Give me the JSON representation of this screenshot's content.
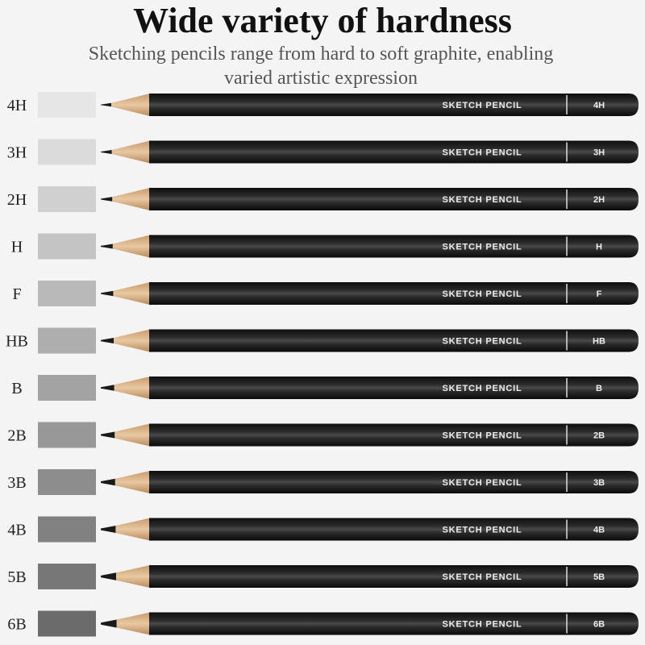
{
  "title": "Wide variety of hardness",
  "subtitle": [
    "Sketching pencils range from hard to soft graphite, enabling",
    "varied artistic expression"
  ],
  "rows": [
    {
      "label": "4H",
      "brand": "SKETCH PENCIL",
      "grade": "4H"
    },
    {
      "label": "3H",
      "brand": "SKETCH PENCIL",
      "grade": "3H"
    },
    {
      "label": "2H",
      "brand": "SKETCH PENCIL",
      "grade": "2H"
    },
    {
      "label": "H",
      "brand": "SKETCH PENCIL",
      "grade": "H"
    },
    {
      "label": "F",
      "brand": "SKETCH PENCIL",
      "grade": "F"
    },
    {
      "label": "HB",
      "brand": "SKETCH PENCIL",
      "grade": "HB"
    },
    {
      "label": "B",
      "brand": "SKETCH PENCIL",
      "grade": "B"
    },
    {
      "label": "2B",
      "brand": "SKETCH PENCIL",
      "grade": "2B"
    },
    {
      "label": "3B",
      "brand": "SKETCH PENCIL",
      "grade": "3B"
    },
    {
      "label": "4B",
      "brand": "SKETCH PENCIL",
      "grade": "4B"
    },
    {
      "label": "5B",
      "brand": "SKETCH PENCIL",
      "grade": "5B"
    },
    {
      "label": "6B",
      "brand": "SKETCH PENCIL",
      "grade": "6B"
    }
  ]
}
